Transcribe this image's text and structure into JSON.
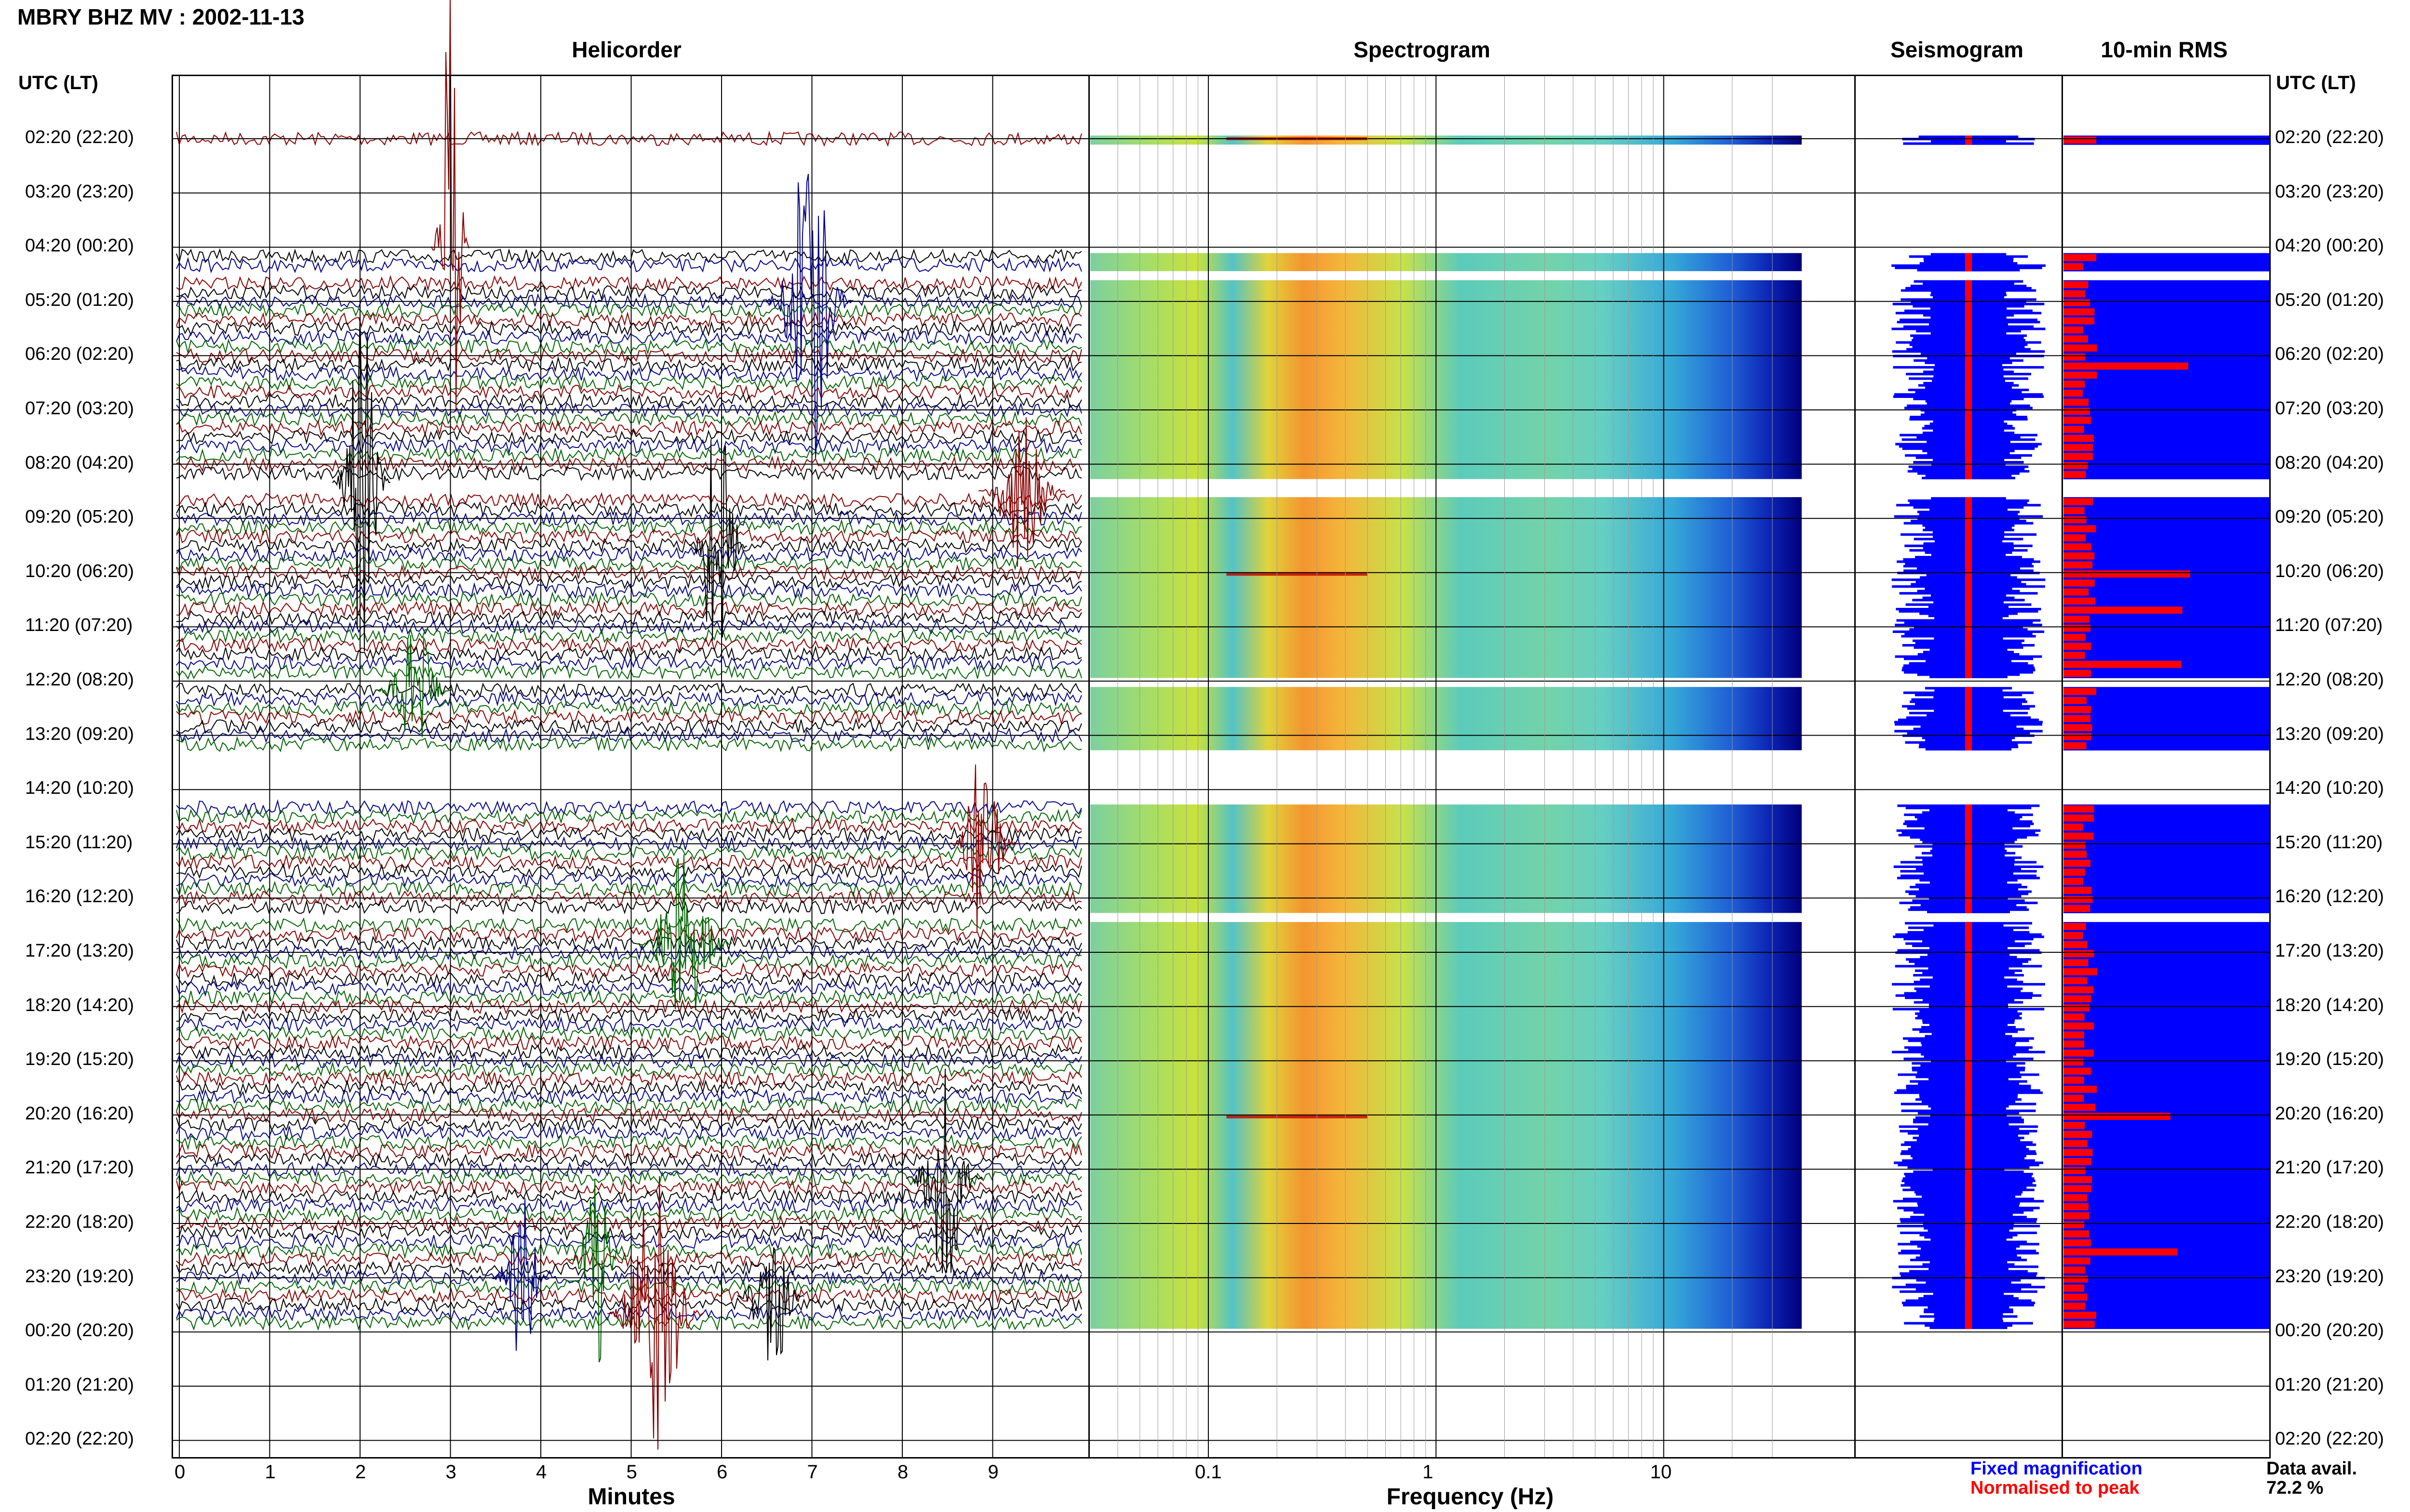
{
  "header": {
    "title": "MBRY BHZ MV : 2002-11-13",
    "utc_lt_left": "UTC (LT)",
    "utc_lt_right": "UTC (LT)"
  },
  "panels": {
    "helicorder": "Helicorder",
    "spectrogram": "Spectrogram",
    "seismogram": "Seismogram",
    "rms": "10-min RMS"
  },
  "axes": {
    "minutes_label": "Minutes",
    "frequency_label": "Frequency (Hz)",
    "minute_ticks": [
      "0",
      "1",
      "2",
      "3",
      "4",
      "5",
      "6",
      "7",
      "8",
      "9"
    ],
    "frequency_ticks": [
      "0.1",
      "1",
      "10"
    ]
  },
  "time_labels": [
    "02:20 (22:20)",
    "03:20 (23:20)",
    "04:20 (00:20)",
    "05:20 (01:20)",
    "06:20 (02:20)",
    "07:20 (03:20)",
    "08:20 (04:20)",
    "09:20 (05:20)",
    "10:20 (06:20)",
    "11:20 (07:20)",
    "12:20 (08:20)",
    "13:20 (09:20)",
    "14:20 (10:20)",
    "15:20 (11:20)",
    "16:20 (12:20)",
    "17:20 (13:20)",
    "18:20 (14:20)",
    "19:20 (15:20)",
    "20:20 (16:20)",
    "21:20 (17:20)",
    "22:20 (18:20)",
    "23:20 (19:20)",
    "00:20 (20:20)",
    "01:20 (21:20)",
    "02:20 (22:20)"
  ],
  "legend": {
    "fixed": "Fixed magnification",
    "normalised": "Normalised to peak",
    "avail_label": "Data avail.",
    "avail_value": "72.2 %"
  },
  "colors": {
    "trace_red": "#8b0000",
    "trace_blue": "#00008b",
    "trace_green": "#006400",
    "trace_black": "#000000",
    "rms_blue": "#0000ff",
    "rms_red": "#ff0000",
    "legend_blue": "#0000ff",
    "legend_red": "#ff0000"
  },
  "chart_data": {
    "type": "heatmap",
    "x_minutes_range": [
      0,
      10
    ],
    "freq_range_hz": [
      0.03,
      40
    ],
    "freq_scale": "log",
    "data_availability_percent": 72.2,
    "gaps_utc": [
      [
        "02:30",
        "04:30"
      ],
      [
        "04:50",
        "05:00"
      ],
      [
        "08:40",
        "09:00"
      ],
      [
        "12:20",
        "12:30"
      ],
      [
        "13:40",
        "14:40"
      ],
      [
        "16:40",
        "16:50"
      ],
      [
        "00:20",
        "02:20"
      ]
    ]
  }
}
